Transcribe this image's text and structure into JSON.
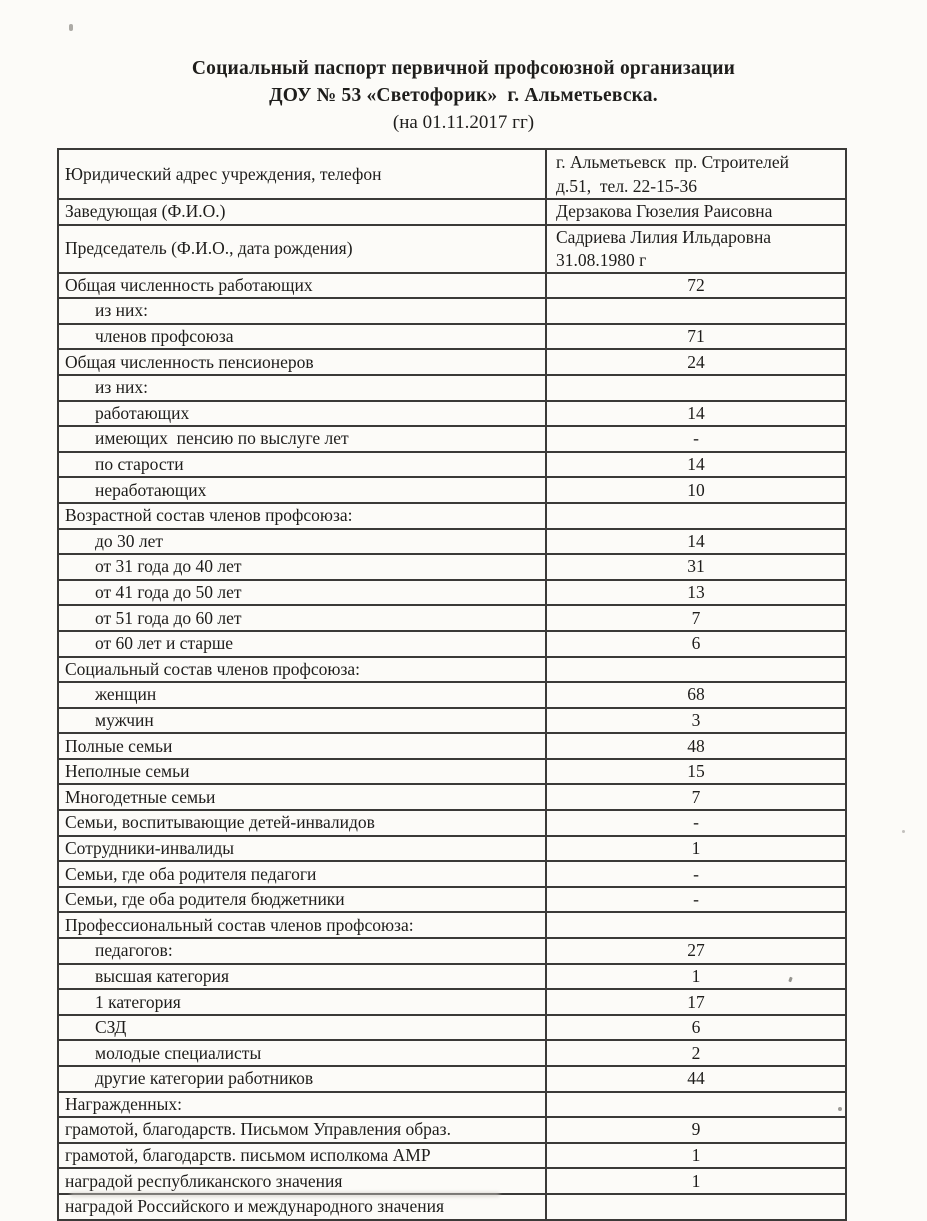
{
  "header": {
    "title_line1": "Социальный паспорт первичной профсоюзной организации",
    "title_line2": "ДОУ № 53 «Светофорик»  г. Альметьевска.",
    "title_line3": "(на 01.11.2017 гг)"
  },
  "table": {
    "rows": [
      {
        "label": "Юридический адрес учреждения, телефон",
        "value": "г. Альметьевск  пр. Строителей\nд.51,  тел. 22-15-36",
        "indent": false,
        "value_align": "left",
        "two_line": "a"
      },
      {
        "label": "Заведующая (Ф.И.О.)",
        "value": "Дерзакова Гюзелия Раисовна",
        "indent": false,
        "value_align": "left"
      },
      {
        "label": "Председатель (Ф.И.О., дата рождения)",
        "value": "Садриева Лилия Ильдаровна\n31.08.1980 г",
        "indent": false,
        "value_align": "left",
        "two_line": "b"
      },
      {
        "label": "Общая численность работающих",
        "value": "72",
        "indent": false
      },
      {
        "label": "из них:",
        "value": "",
        "indent": true
      },
      {
        "label": "членов профсоюза",
        "value": "71",
        "indent": true
      },
      {
        "label": "Общая численность пенсионеров",
        "value": "24",
        "indent": false
      },
      {
        "label": "из них:",
        "value": "",
        "indent": true
      },
      {
        "label": "работающих",
        "value": "14",
        "indent": true
      },
      {
        "label": "имеющих  пенсию по выслуге лет",
        "value": "-",
        "indent": true
      },
      {
        "label": "по старости",
        "value": "14",
        "indent": true
      },
      {
        "label": "неработающих",
        "value": "10",
        "indent": true
      },
      {
        "label": "Возрастной состав членов профсоюза:",
        "value": "",
        "indent": false
      },
      {
        "label": "до 30 лет",
        "value": "14",
        "indent": true
      },
      {
        "label": "от 31 года до 40 лет",
        "value": "31",
        "indent": true
      },
      {
        "label": "от 41 года до 50 лет",
        "value": "13",
        "indent": true
      },
      {
        "label": "от 51 года до 60 лет",
        "value": "7",
        "indent": true
      },
      {
        "label": "от 60 лет и старше",
        "value": "6",
        "indent": true
      },
      {
        "label": "Социальный состав членов профсоюза:",
        "value": "",
        "indent": false
      },
      {
        "label": "женщин",
        "value": "68",
        "indent": true
      },
      {
        "label": "мужчин",
        "value": "3",
        "indent": true
      },
      {
        "label": "Полные семьи",
        "value": "48",
        "indent": false
      },
      {
        "label": "Неполные семьи",
        "value": "15",
        "indent": false
      },
      {
        "label": "Многодетные семьи",
        "value": "7",
        "indent": false
      },
      {
        "label": "Семьи, воспитывающие детей-инвалидов",
        "value": "-",
        "indent": false
      },
      {
        "label": "Сотрудники-инвалиды",
        "value": "1",
        "indent": false
      },
      {
        "label": "Семьи, где оба родителя педагоги",
        "value": "-",
        "indent": false
      },
      {
        "label": "Семьи, где оба родителя бюджетники",
        "value": "-",
        "indent": false
      },
      {
        "label": "Профессиональный состав членов профсоюза:",
        "value": "",
        "indent": false
      },
      {
        "label": "педагогов:",
        "value": "27",
        "indent": true
      },
      {
        "label": "высшая категория",
        "value": "1",
        "indent": true
      },
      {
        "label": "1 категория",
        "value": "17",
        "indent": true
      },
      {
        "label": "СЗД",
        "value": "6",
        "indent": true
      },
      {
        "label": "молодые специалисты",
        "value": "2",
        "indent": true
      },
      {
        "label": "другие категории работников",
        "value": "44",
        "indent": true
      },
      {
        "label": "Награжденных:",
        "value": "",
        "indent": false
      },
      {
        "label": "грамотой, благодарств. Письмом Управления образ.",
        "value": "9",
        "indent": false
      },
      {
        "label": "грамотой, благодарств. письмом исполкома АМР",
        "value": "1",
        "indent": false
      },
      {
        "label": "наградой республиканского значения",
        "value": "1",
        "indent": false
      },
      {
        "label": "наградой Российского и международного значения",
        "value": "",
        "indent": false
      }
    ]
  }
}
